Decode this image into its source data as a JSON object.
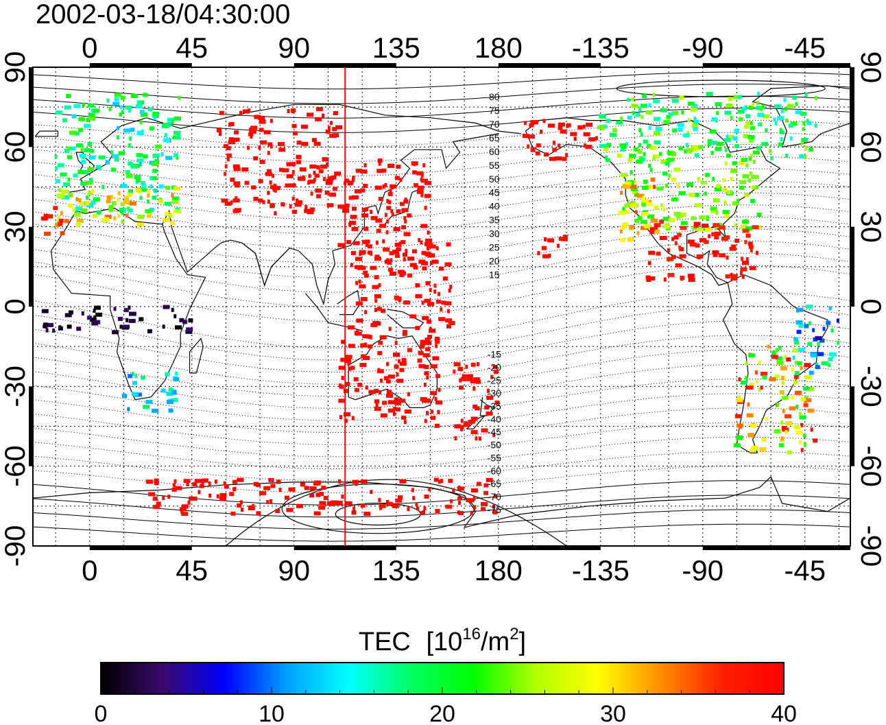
{
  "title": "2002-03-18/04:30:00",
  "lon_labels": [
    "0",
    "45",
    "90",
    "135",
    "180",
    "-135",
    "-90",
    "-45"
  ],
  "lat_labels": [
    "90",
    "60",
    "30",
    "0",
    "-30",
    "-60",
    "-90"
  ],
  "colorbar": {
    "title_main": "TEC",
    "title_unit_prefix": "[10",
    "title_unit_exp": "16",
    "title_unit_mid": "/m",
    "title_unit_exp2": "2",
    "title_unit_suffix": "]",
    "ticks": [
      "0",
      "10",
      "20",
      "30",
      "40"
    ],
    "stops": [
      "#000000",
      "#3a0a6e",
      "#0000ff",
      "#00a0ff",
      "#00ffff",
      "#00ff60",
      "#00ff00",
      "#b0ff00",
      "#ffff00",
      "#ff9000",
      "#ff2000",
      "#ff0000"
    ]
  },
  "contour_labels_north": [
    "80",
    "75",
    "70",
    "65",
    "60",
    "55",
    "50",
    "45",
    "40",
    "35",
    "30",
    "25",
    "20",
    "15"
  ],
  "contour_labels_south": [
    "-15",
    "-20",
    "-25",
    "-30",
    "-35",
    "-40",
    "-45",
    "-50",
    "-55",
    "-60",
    "-65",
    "-70",
    "-75"
  ],
  "map_data": {
    "projection": "equirectangular",
    "lon_range": [
      -25,
      335
    ],
    "lat_range": [
      -90,
      90
    ],
    "marker_longitude": 112.5,
    "marker_color": "#ff0000",
    "tec_range": [
      0,
      40
    ],
    "regions": [
      {
        "name": "europe",
        "lon": [
          -15,
          40
        ],
        "lat": [
          35,
          80
        ],
        "tec": [
          12,
          24
        ]
      },
      {
        "name": "europe-south",
        "lon": [
          -15,
          40
        ],
        "lat": [
          30,
          45
        ],
        "tec": [
          24,
          34
        ]
      },
      {
        "name": "iberia-coast",
        "lon": [
          -20,
          -8
        ],
        "lat": [
          27,
          38
        ],
        "tec": [
          34,
          40
        ]
      },
      {
        "name": "russia-scatter",
        "lon": [
          55,
          110
        ],
        "lat": [
          35,
          75
        ],
        "tec": [
          38,
          40
        ]
      },
      {
        "name": "japan-china",
        "lon": [
          110,
          150
        ],
        "lat": [
          20,
          55
        ],
        "tec": [
          38,
          40
        ]
      },
      {
        "name": "pacific-west",
        "lon": [
          115,
          160
        ],
        "lat": [
          -10,
          25
        ],
        "tec": [
          38,
          40
        ]
      },
      {
        "name": "australia",
        "lon": [
          110,
          155
        ],
        "lat": [
          -45,
          -10
        ],
        "tec": [
          38,
          40
        ]
      },
      {
        "name": "new-zealand",
        "lon": [
          160,
          180
        ],
        "lat": [
          -50,
          -20
        ],
        "tec": [
          38,
          40
        ]
      },
      {
        "name": "alaska",
        "lon": [
          190,
          225
        ],
        "lat": [
          55,
          70
        ],
        "tec": [
          38,
          40
        ]
      },
      {
        "name": "north-america",
        "lon": [
          235,
          295
        ],
        "lat": [
          28,
          60
        ],
        "tec": [
          20,
          28
        ]
      },
      {
        "name": "north-america-west",
        "lon": [
          233,
          250
        ],
        "lat": [
          25,
          50
        ],
        "tec": [
          28,
          36
        ]
      },
      {
        "name": "canada",
        "lon": [
          225,
          320
        ],
        "lat": [
          55,
          80
        ],
        "tec": [
          14,
          26
        ]
      },
      {
        "name": "mexico-caribbean",
        "lon": [
          245,
          295
        ],
        "lat": [
          10,
          32
        ],
        "tec": [
          36,
          40
        ]
      },
      {
        "name": "hawaii",
        "lon": [
          195,
          210
        ],
        "lat": [
          18,
          28
        ],
        "tec": [
          38,
          40
        ]
      },
      {
        "name": "south-america",
        "lon": [
          285,
          320
        ],
        "lat": [
          -55,
          -15
        ],
        "tec": [
          20,
          40
        ]
      },
      {
        "name": "brazil-east",
        "lon": [
          310,
          330
        ],
        "lat": [
          -25,
          0
        ],
        "tec": [
          4,
          20
        ]
      },
      {
        "name": "africa-central",
        "lon": [
          -20,
          45
        ],
        "lat": [
          -10,
          0
        ],
        "tec": [
          0,
          4
        ]
      },
      {
        "name": "south-africa",
        "lon": [
          15,
          40
        ],
        "lat": [
          -40,
          -25
        ],
        "tec": [
          8,
          20
        ]
      },
      {
        "name": "antarctica-coast",
        "lon": [
          25,
          180
        ],
        "lat": [
          -78,
          -65
        ],
        "tec": [
          38,
          40
        ]
      }
    ]
  }
}
